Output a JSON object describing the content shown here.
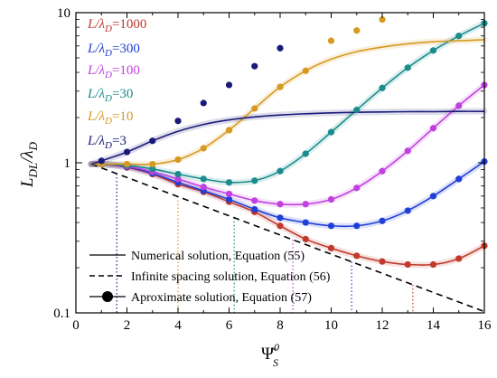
{
  "chart_data": {
    "type": "line",
    "xlim": [
      0,
      16
    ],
    "ylim": [
      0.1,
      10
    ],
    "yscale": "log",
    "xticks": [
      "0",
      "2",
      "4",
      "6",
      "8",
      "10",
      "12",
      "14",
      "16"
    ],
    "yticks": [
      "0.1",
      "1",
      "10"
    ],
    "xlabel": "Ψ̄",
    "xlabel_sup": "0",
    "xlabel_sub": "S",
    "ylabel_main": "L",
    "ylabel_sub": "DL",
    "ylabel_den": "/λ",
    "ylabel_den_sub": "D",
    "series_labels": [
      {
        "ratio": "L/λ",
        "sub": "D",
        "value": "=1000",
        "color": "#c0392b"
      },
      {
        "ratio": "L/λ",
        "sub": "D",
        "value": "=300",
        "color": "#1f3fd6"
      },
      {
        "ratio": "L/λ",
        "sub": "D",
        "value": "=100",
        "color": "#c040e0"
      },
      {
        "ratio": "L/λ",
        "sub": "D",
        "value": "=30",
        "color": "#1a8c8c"
      },
      {
        "ratio": "L/λ",
        "sub": "D",
        "value": "=10",
        "color": "#d69a20"
      },
      {
        "ratio": "L/λ",
        "sub": "D",
        "value": "=3",
        "color": "#1a1a7a"
      }
    ],
    "legend": [
      {
        "label": "Numerical solution, Equation (55)",
        "style": "solid"
      },
      {
        "label": "Infinite spacing solution, Equation (56)",
        "style": "dashed"
      },
      {
        "label": "Aproximate solution, Equation (57)",
        "style": "marker"
      }
    ],
    "series": [
      {
        "name": "L/λD=1000",
        "color": "#c0392b",
        "x": [
          0.6,
          1,
          2,
          3,
          4,
          5,
          6,
          7,
          8,
          9,
          10,
          11,
          12,
          13,
          14,
          15,
          16
        ],
        "y": [
          0.98,
          0.98,
          0.93,
          0.84,
          0.72,
          0.64,
          0.55,
          0.47,
          0.38,
          0.31,
          0.27,
          0.24,
          0.22,
          0.21,
          0.21,
          0.23,
          0.28
        ]
      },
      {
        "name": "L/λD=300",
        "color": "#1f3fd6",
        "x": [
          0.6,
          1,
          2,
          3,
          4,
          5,
          6,
          7,
          8,
          9,
          10,
          11,
          12,
          13,
          14,
          15,
          16
        ],
        "y": [
          0.98,
          0.98,
          0.94,
          0.85,
          0.74,
          0.65,
          0.57,
          0.49,
          0.43,
          0.4,
          0.38,
          0.38,
          0.41,
          0.48,
          0.6,
          0.78,
          1.02
        ]
      },
      {
        "name": "L/λD=100",
        "color": "#c040e0",
        "x": [
          0.6,
          1,
          2,
          3,
          4,
          5,
          6,
          7,
          8,
          9,
          10,
          11,
          12,
          13,
          14,
          15,
          16
        ],
        "y": [
          0.98,
          0.98,
          0.95,
          0.87,
          0.78,
          0.69,
          0.62,
          0.56,
          0.53,
          0.53,
          0.57,
          0.68,
          0.88,
          1.2,
          1.7,
          2.4,
          3.3
        ]
      },
      {
        "name": "L/λD=30",
        "color": "#1a8c8c",
        "x": [
          0.6,
          1,
          2,
          3,
          4,
          5,
          6,
          7,
          8,
          9,
          10,
          11,
          12,
          13,
          14,
          15,
          16
        ],
        "y": [
          0.98,
          0.98,
          0.96,
          0.91,
          0.84,
          0.78,
          0.74,
          0.76,
          0.88,
          1.15,
          1.6,
          2.25,
          3.15,
          4.3,
          5.6,
          7.0,
          8.5
        ]
      },
      {
        "name": "L/λD=10",
        "color": "#d69a20",
        "x": [
          0.6,
          1,
          2,
          3,
          4,
          5,
          6,
          7,
          8,
          9,
          10,
          11,
          12,
          13,
          14,
          15,
          16
        ],
        "y": [
          0.98,
          0.98,
          0.98,
          0.98,
          1.05,
          1.25,
          1.65,
          2.3,
          3.2,
          4.1,
          4.9,
          5.5,
          5.9,
          6.2,
          6.4,
          6.5,
          6.6
        ]
      },
      {
        "name": "L/λD=3",
        "color": "#1a1a7a",
        "x": [
          0.6,
          1,
          2,
          3,
          4,
          5,
          6,
          7,
          8,
          9,
          10,
          11,
          12,
          13,
          14,
          15,
          16
        ],
        "y": [
          0.98,
          1.03,
          1.18,
          1.4,
          1.62,
          1.8,
          1.93,
          2.02,
          2.08,
          2.12,
          2.15,
          2.17,
          2.18,
          2.19,
          2.19,
          2.2,
          2.2
        ]
      }
    ],
    "markers": [
      {
        "series": "L/λD=1000",
        "color": "#c0392b",
        "x": [
          1,
          2,
          3,
          4,
          5,
          6,
          7,
          8,
          9,
          10,
          11,
          12,
          13,
          14,
          15,
          16
        ],
        "y": [
          0.98,
          0.93,
          0.84,
          0.72,
          0.64,
          0.55,
          0.47,
          0.38,
          0.31,
          0.27,
          0.24,
          0.22,
          0.21,
          0.21,
          0.23,
          0.28
        ]
      },
      {
        "series": "L/λD=300",
        "color": "#1f3fd6",
        "x": [
          1,
          2,
          3,
          4,
          5,
          6,
          7,
          8,
          9,
          10,
          11,
          12,
          13,
          14,
          15,
          16
        ],
        "y": [
          0.98,
          0.94,
          0.85,
          0.74,
          0.65,
          0.57,
          0.49,
          0.43,
          0.4,
          0.38,
          0.38,
          0.41,
          0.48,
          0.6,
          0.78,
          1.02
        ]
      },
      {
        "series": "L/λD=100",
        "color": "#c040e0",
        "x": [
          1,
          2,
          3,
          4,
          5,
          6,
          7,
          8,
          9,
          10,
          11,
          12,
          13,
          14,
          15,
          16
        ],
        "y": [
          0.98,
          0.95,
          0.87,
          0.78,
          0.69,
          0.62,
          0.56,
          0.53,
          0.53,
          0.57,
          0.68,
          0.88,
          1.2,
          1.7,
          2.4,
          3.3
        ]
      },
      {
        "series": "L/λD=30",
        "color": "#1a8c8c",
        "x": [
          1,
          2,
          3,
          4,
          5,
          6,
          7,
          8,
          9,
          10,
          11,
          12,
          13,
          14,
          15,
          16
        ],
        "y": [
          0.98,
          0.96,
          0.91,
          0.84,
          0.78,
          0.74,
          0.76,
          0.88,
          1.15,
          1.6,
          2.25,
          3.15,
          4.3,
          5.6,
          7.0,
          8.5
        ]
      },
      {
        "series": "L/λD=10",
        "color": "#d69a20",
        "x": [
          1,
          2,
          3,
          4,
          5,
          6,
          7,
          8,
          9,
          10,
          11,
          12
        ],
        "y": [
          0.98,
          0.98,
          0.98,
          1.05,
          1.25,
          1.65,
          2.3,
          3.2,
          4.1,
          6.5,
          7.6,
          9.0
        ]
      },
      {
        "series": "L/λD=3",
        "color": "#1a1a7a",
        "x": [
          1,
          2,
          3,
          4,
          5,
          6,
          7,
          8
        ],
        "y": [
          1.03,
          1.18,
          1.4,
          1.9,
          2.5,
          3.3,
          4.4,
          5.8
        ]
      }
    ],
    "infinite_spacing": {
      "x": [
        0.6,
        16
      ],
      "y": [
        0.98,
        0.102
      ]
    },
    "minimum_guides": [
      {
        "x": 1.6,
        "color": "#1a1a7a"
      },
      {
        "x": 4.0,
        "color": "#d69a20"
      },
      {
        "x": 6.2,
        "color": "#1a8c8c"
      },
      {
        "x": 8.5,
        "color": "#c040e0"
      },
      {
        "x": 10.8,
        "color": "#1f3fd6"
      },
      {
        "x": 13.2,
        "color": "#c0392b"
      }
    ]
  }
}
